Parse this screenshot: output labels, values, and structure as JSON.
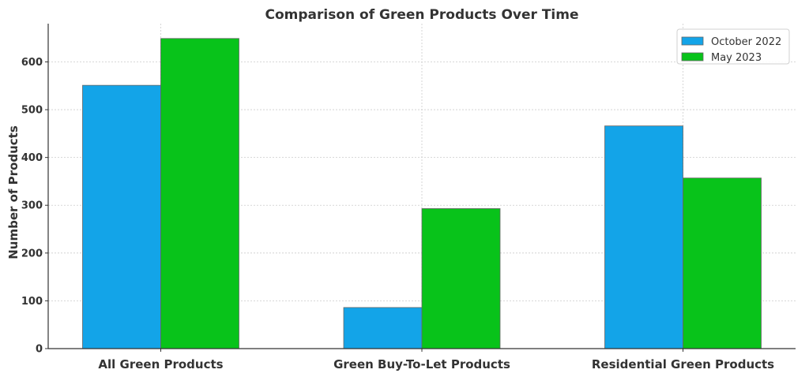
{
  "chart_data": {
    "type": "bar",
    "title": "Comparison of Green Products Over Time",
    "xlabel": "",
    "ylabel": "Number of Products",
    "categories": [
      "All Green Products",
      "Green Buy-To-Let Products",
      "Residential Green Products"
    ],
    "series": [
      {
        "name": "October 2022",
        "color": "#13a4e8",
        "values": [
          551,
          86,
          466
        ]
      },
      {
        "name": "May 2023",
        "color": "#08c31a",
        "values": [
          649,
          293,
          357
        ]
      }
    ],
    "yticks": [
      0,
      100,
      200,
      300,
      400,
      500,
      600
    ],
    "ylim": [
      0,
      680
    ],
    "grid": true,
    "legend_position": "top-right"
  }
}
